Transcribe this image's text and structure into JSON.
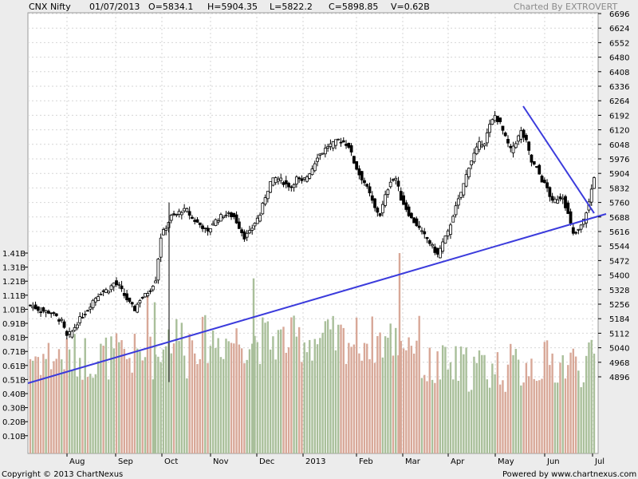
{
  "header": {
    "symbol": "CNX Nifty",
    "date": "01/07/2013",
    "open": "O=5834.1",
    "high": "H=5904.35",
    "low": "L=5822.2",
    "close": "C=5898.85",
    "volume": "V=0.62B",
    "credit": "Charted By EXTROVERT"
  },
  "footer": {
    "copyright": "Copyright © 2013 ChartNexus",
    "powered": "Powered by www.chartnexus.com"
  },
  "colors": {
    "background": "#ececec",
    "plot": "#ffffff",
    "candle": "#000000",
    "volume_up": "#a9bf9a",
    "volume_down": "#d8a898",
    "trendline": "#3b3bdc",
    "grid": "#d6d6d6"
  },
  "chart_data": {
    "type": "candlestick",
    "price_ticks": [
      6696,
      6624,
      6552,
      6480,
      6408,
      6336,
      6264,
      6192,
      6120,
      6048,
      5976,
      5904,
      5832,
      5760,
      5688,
      5616,
      5544,
      5472,
      5400,
      5328,
      5256,
      5184,
      5112,
      5040,
      4968,
      4896
    ],
    "volume_ticks": [
      "1.41B",
      "1.31B",
      "1.21B",
      "1.11B",
      "1.01B",
      "0.91B",
      "0.81B",
      "0.71B",
      "0.61B",
      "0.51B",
      "0.40B",
      "0.30B",
      "0.20B",
      "0.10B"
    ],
    "months": [
      "Aug",
      "Sep",
      "Oct",
      "Nov",
      "Dec",
      "2013",
      "Feb",
      "Mar",
      "Apr",
      "May",
      "Jun",
      "Jul"
    ],
    "close_path": [
      [
        0,
        5250
      ],
      [
        4,
        5225
      ],
      [
        8,
        5215
      ],
      [
        12,
        5170
      ],
      [
        14,
        5095
      ],
      [
        16,
        5120
      ],
      [
        18,
        5165
      ],
      [
        20,
        5200
      ],
      [
        22,
        5230
      ],
      [
        24,
        5275
      ],
      [
        27,
        5315
      ],
      [
        30,
        5330
      ],
      [
        32,
        5360
      ],
      [
        34,
        5345
      ],
      [
        36,
        5300
      ],
      [
        38,
        5260
      ],
      [
        40,
        5230
      ],
      [
        42,
        5280
      ],
      [
        44,
        5300
      ],
      [
        46,
        5330
      ],
      [
        48,
        5380
      ],
      [
        50,
        5590
      ],
      [
        52,
        5640
      ],
      [
        54,
        5690
      ],
      [
        56,
        5700
      ],
      [
        58,
        5720
      ],
      [
        60,
        5720
      ],
      [
        62,
        5680
      ],
      [
        64,
        5660
      ],
      [
        66,
        5640
      ],
      [
        68,
        5610
      ],
      [
        70,
        5660
      ],
      [
        72,
        5680
      ],
      [
        74,
        5700
      ],
      [
        76,
        5700
      ],
      [
        78,
        5690
      ],
      [
        80,
        5640
      ],
      [
        82,
        5590
      ],
      [
        84,
        5610
      ],
      [
        86,
        5660
      ],
      [
        88,
        5700
      ],
      [
        90,
        5790
      ],
      [
        92,
        5860
      ],
      [
        94,
        5880
      ],
      [
        96,
        5870
      ],
      [
        98,
        5850
      ],
      [
        100,
        5840
      ],
      [
        102,
        5880
      ],
      [
        104,
        5860
      ],
      [
        106,
        5890
      ],
      [
        108,
        5930
      ],
      [
        110,
        5990
      ],
      [
        112,
        6010
      ],
      [
        114,
        6040
      ],
      [
        116,
        6050
      ],
      [
        118,
        6070
      ],
      [
        120,
        6060
      ],
      [
        122,
        6040
      ],
      [
        124,
        5960
      ],
      [
        126,
        5900
      ],
      [
        128,
        5860
      ],
      [
        130,
        5800
      ],
      [
        132,
        5730
      ],
      [
        134,
        5700
      ],
      [
        136,
        5790
      ],
      [
        138,
        5870
      ],
      [
        140,
        5880
      ],
      [
        142,
        5780
      ],
      [
        144,
        5730
      ],
      [
        146,
        5680
      ],
      [
        148,
        5650
      ],
      [
        150,
        5610
      ],
      [
        152,
        5580
      ],
      [
        154,
        5540
      ],
      [
        156,
        5500
      ],
      [
        158,
        5560
      ],
      [
        160,
        5610
      ],
      [
        162,
        5700
      ],
      [
        164,
        5770
      ],
      [
        166,
        5850
      ],
      [
        168,
        5940
      ],
      [
        170,
        6000
      ],
      [
        172,
        6050
      ],
      [
        174,
        6060
      ],
      [
        176,
        6140
      ],
      [
        178,
        6190
      ],
      [
        180,
        6150
      ],
      [
        182,
        6080
      ],
      [
        184,
        6020
      ],
      [
        186,
        6060
      ],
      [
        188,
        6110
      ],
      [
        190,
        6060
      ],
      [
        192,
        5960
      ],
      [
        194,
        5930
      ],
      [
        196,
        5870
      ],
      [
        198,
        5830
      ],
      [
        200,
        5760
      ],
      [
        202,
        5780
      ],
      [
        204,
        5790
      ],
      [
        206,
        5700
      ],
      [
        208,
        5600
      ],
      [
        210,
        5620
      ],
      [
        212,
        5670
      ],
      [
        214,
        5760
      ],
      [
        216,
        5890
      ]
    ],
    "notes": "2013"
  }
}
